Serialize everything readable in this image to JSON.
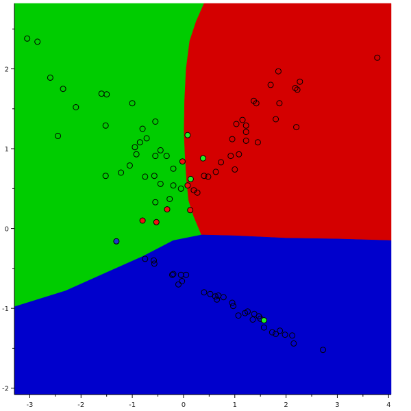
{
  "chart_data": {
    "type": "scatter",
    "title": "",
    "xlabel": "",
    "ylabel": "",
    "xlim": [
      -3.3,
      4.05
    ],
    "ylim": [
      -2.08,
      2.82
    ],
    "x_ticks": [
      "-3",
      "-2",
      "-1",
      "0",
      "1",
      "2",
      "3",
      "4"
    ],
    "y_ticks": [
      "-2",
      "-1",
      "0",
      "1",
      "2"
    ],
    "grid": false,
    "legend": "none",
    "region_colors": {
      "red": "#d40000",
      "green": "#00cc00",
      "blue": "#0000cc"
    },
    "point_fill": {
      "hollow": "none",
      "red": "#ee1111",
      "green": "#22ee22",
      "blue": "#2233cc"
    },
    "regions": {
      "green": [
        [
          -3.3,
          2.82
        ],
        [
          0.4,
          2.82
        ],
        [
          0.25,
          2.6
        ],
        [
          0.12,
          2.35
        ],
        [
          0.05,
          2.0
        ],
        [
          0.02,
          1.6
        ],
        [
          0.01,
          1.2
        ],
        [
          0.03,
          0.9
        ],
        [
          0.06,
          0.6
        ],
        [
          0.1,
          0.35
        ],
        [
          0.2,
          0.15
        ],
        [
          0.35,
          -0.08
        ],
        [
          -0.2,
          -0.15
        ],
        [
          -0.8,
          -0.35
        ],
        [
          -1.5,
          -0.55
        ],
        [
          -2.3,
          -0.78
        ],
        [
          -3.3,
          -0.98
        ]
      ],
      "red": [
        [
          0.4,
          2.82
        ],
        [
          4.05,
          2.82
        ],
        [
          4.05,
          -0.15
        ],
        [
          3.0,
          -0.13
        ],
        [
          2.0,
          -0.12
        ],
        [
          1.0,
          -0.09
        ],
        [
          0.35,
          -0.08
        ],
        [
          0.2,
          0.15
        ],
        [
          0.1,
          0.35
        ],
        [
          0.06,
          0.6
        ],
        [
          0.03,
          0.9
        ],
        [
          0.01,
          1.2
        ],
        [
          0.02,
          1.6
        ],
        [
          0.05,
          2.0
        ],
        [
          0.12,
          2.35
        ],
        [
          0.25,
          2.6
        ]
      ],
      "blue": [
        [
          -3.3,
          -0.98
        ],
        [
          -2.3,
          -0.78
        ],
        [
          -1.5,
          -0.55
        ],
        [
          -0.8,
          -0.35
        ],
        [
          -0.2,
          -0.15
        ],
        [
          0.35,
          -0.08
        ],
        [
          1.0,
          -0.09
        ],
        [
          2.0,
          -0.12
        ],
        [
          3.0,
          -0.13
        ],
        [
          4.05,
          -0.15
        ],
        [
          4.05,
          -2.08
        ],
        [
          -3.3,
          -2.08
        ]
      ]
    },
    "points": [
      {
        "x": -3.05,
        "y": 2.38,
        "c": "hollow"
      },
      {
        "x": -2.85,
        "y": 2.34,
        "c": "hollow"
      },
      {
        "x": -2.6,
        "y": 1.89,
        "c": "hollow"
      },
      {
        "x": -2.35,
        "y": 1.75,
        "c": "hollow"
      },
      {
        "x": -2.1,
        "y": 1.52,
        "c": "hollow"
      },
      {
        "x": -1.6,
        "y": 1.69,
        "c": "hollow"
      },
      {
        "x": -1.5,
        "y": 1.68,
        "c": "hollow"
      },
      {
        "x": -2.45,
        "y": 1.16,
        "c": "hollow"
      },
      {
        "x": -1.52,
        "y": 1.29,
        "c": "hollow"
      },
      {
        "x": -1.0,
        "y": 1.57,
        "c": "hollow"
      },
      {
        "x": -0.55,
        "y": 1.34,
        "c": "hollow"
      },
      {
        "x": -0.8,
        "y": 1.25,
        "c": "hollow"
      },
      {
        "x": -0.72,
        "y": 1.13,
        "c": "hollow"
      },
      {
        "x": -0.85,
        "y": 1.08,
        "c": "hollow"
      },
      {
        "x": -0.95,
        "y": 1.02,
        "c": "hollow"
      },
      {
        "x": -0.45,
        "y": 0.98,
        "c": "hollow"
      },
      {
        "x": -0.92,
        "y": 0.93,
        "c": "hollow"
      },
      {
        "x": -0.55,
        "y": 0.91,
        "c": "hollow"
      },
      {
        "x": -0.33,
        "y": 0.91,
        "c": "hollow"
      },
      {
        "x": -1.05,
        "y": 0.79,
        "c": "hollow"
      },
      {
        "x": -0.2,
        "y": 0.75,
        "c": "hollow"
      },
      {
        "x": -1.22,
        "y": 0.7,
        "c": "hollow"
      },
      {
        "x": -1.52,
        "y": 0.66,
        "c": "hollow"
      },
      {
        "x": -0.75,
        "y": 0.65,
        "c": "hollow"
      },
      {
        "x": -0.57,
        "y": 0.66,
        "c": "hollow"
      },
      {
        "x": -0.45,
        "y": 0.56,
        "c": "hollow"
      },
      {
        "x": -0.2,
        "y": 0.54,
        "c": "hollow"
      },
      {
        "x": -0.05,
        "y": 0.5,
        "c": "hollow"
      },
      {
        "x": -0.27,
        "y": 0.37,
        "c": "hollow"
      },
      {
        "x": -0.55,
        "y": 0.33,
        "c": "hollow"
      },
      {
        "x": 0.2,
        "y": 0.48,
        "c": "hollow"
      },
      {
        "x": 0.27,
        "y": 0.45,
        "c": "hollow"
      },
      {
        "x": 0.4,
        "y": 0.66,
        "c": "hollow"
      },
      {
        "x": 0.48,
        "y": 0.65,
        "c": "hollow"
      },
      {
        "x": 0.63,
        "y": 0.71,
        "c": "hollow"
      },
      {
        "x": 0.73,
        "y": 0.83,
        "c": "hollow"
      },
      {
        "x": 0.92,
        "y": 0.91,
        "c": "hollow"
      },
      {
        "x": 1.08,
        "y": 0.93,
        "c": "hollow"
      },
      {
        "x": 1.0,
        "y": 0.74,
        "c": "hollow"
      },
      {
        "x": 0.95,
        "y": 1.12,
        "c": "hollow"
      },
      {
        "x": 1.22,
        "y": 1.1,
        "c": "hollow"
      },
      {
        "x": 1.45,
        "y": 1.08,
        "c": "hollow"
      },
      {
        "x": 1.22,
        "y": 1.21,
        "c": "hollow"
      },
      {
        "x": 1.22,
        "y": 1.29,
        "c": "hollow"
      },
      {
        "x": 1.03,
        "y": 1.31,
        "c": "hollow"
      },
      {
        "x": 1.15,
        "y": 1.36,
        "c": "hollow"
      },
      {
        "x": 1.37,
        "y": 1.6,
        "c": "hollow"
      },
      {
        "x": 1.42,
        "y": 1.57,
        "c": "hollow"
      },
      {
        "x": 1.8,
        "y": 1.37,
        "c": "hollow"
      },
      {
        "x": 1.87,
        "y": 1.57,
        "c": "hollow"
      },
      {
        "x": 1.7,
        "y": 1.8,
        "c": "hollow"
      },
      {
        "x": 1.85,
        "y": 1.97,
        "c": "hollow"
      },
      {
        "x": 2.18,
        "y": 1.76,
        "c": "hollow"
      },
      {
        "x": 2.22,
        "y": 1.74,
        "c": "hollow"
      },
      {
        "x": 2.27,
        "y": 1.84,
        "c": "hollow"
      },
      {
        "x": 2.2,
        "y": 1.27,
        "c": "hollow"
      },
      {
        "x": 3.78,
        "y": 2.14,
        "c": "hollow"
      },
      {
        "x": -0.75,
        "y": -0.38,
        "c": "hollow"
      },
      {
        "x": -0.58,
        "y": -0.4,
        "c": "hollow"
      },
      {
        "x": -0.57,
        "y": -0.44,
        "c": "hollow"
      },
      {
        "x": -0.2,
        "y": -0.57,
        "c": "hollow"
      },
      {
        "x": -0.22,
        "y": -0.58,
        "c": "hollow"
      },
      {
        "x": -0.05,
        "y": -0.58,
        "c": "hollow"
      },
      {
        "x": 0.05,
        "y": -0.58,
        "c": "hollow"
      },
      {
        "x": -0.03,
        "y": -0.66,
        "c": "hollow"
      },
      {
        "x": -0.1,
        "y": -0.7,
        "c": "hollow"
      },
      {
        "x": 0.4,
        "y": -0.8,
        "c": "hollow"
      },
      {
        "x": 0.52,
        "y": -0.82,
        "c": "hollow"
      },
      {
        "x": 0.62,
        "y": -0.85,
        "c": "hollow"
      },
      {
        "x": 0.68,
        "y": -0.84,
        "c": "hollow"
      },
      {
        "x": 0.65,
        "y": -0.89,
        "c": "hollow"
      },
      {
        "x": 0.78,
        "y": -0.86,
        "c": "hollow"
      },
      {
        "x": 0.95,
        "y": -0.93,
        "c": "hollow"
      },
      {
        "x": 0.97,
        "y": -0.97,
        "c": "hollow"
      },
      {
        "x": 1.07,
        "y": -1.09,
        "c": "hollow"
      },
      {
        "x": 1.2,
        "y": -1.06,
        "c": "hollow"
      },
      {
        "x": 1.25,
        "y": -1.04,
        "c": "hollow"
      },
      {
        "x": 1.38,
        "y": -1.07,
        "c": "hollow"
      },
      {
        "x": 1.35,
        "y": -1.14,
        "c": "hollow"
      },
      {
        "x": 1.47,
        "y": -1.1,
        "c": "hollow"
      },
      {
        "x": 1.5,
        "y": -1.13,
        "c": "hollow"
      },
      {
        "x": 1.57,
        "y": -1.24,
        "c": "hollow"
      },
      {
        "x": 1.73,
        "y": -1.3,
        "c": "hollow"
      },
      {
        "x": 1.8,
        "y": -1.32,
        "c": "hollow"
      },
      {
        "x": 1.88,
        "y": -1.28,
        "c": "hollow"
      },
      {
        "x": 1.98,
        "y": -1.33,
        "c": "hollow"
      },
      {
        "x": 2.12,
        "y": -1.34,
        "c": "hollow"
      },
      {
        "x": 2.15,
        "y": -1.44,
        "c": "hollow"
      },
      {
        "x": 2.72,
        "y": -1.52,
        "c": "hollow"
      },
      {
        "x": -0.02,
        "y": 0.84,
        "c": "red"
      },
      {
        "x": 0.08,
        "y": 0.54,
        "c": "red"
      },
      {
        "x": -0.32,
        "y": 0.24,
        "c": "red"
      },
      {
        "x": 0.13,
        "y": 0.23,
        "c": "red"
      },
      {
        "x": -0.8,
        "y": 0.1,
        "c": "red"
      },
      {
        "x": -0.53,
        "y": 0.08,
        "c": "red"
      },
      {
        "x": 0.08,
        "y": 1.17,
        "c": "green"
      },
      {
        "x": 0.38,
        "y": 0.88,
        "c": "green"
      },
      {
        "x": 0.14,
        "y": 0.62,
        "c": "green"
      },
      {
        "x": 1.57,
        "y": -1.15,
        "c": "green"
      },
      {
        "x": -1.31,
        "y": -0.16,
        "c": "blue"
      }
    ]
  }
}
